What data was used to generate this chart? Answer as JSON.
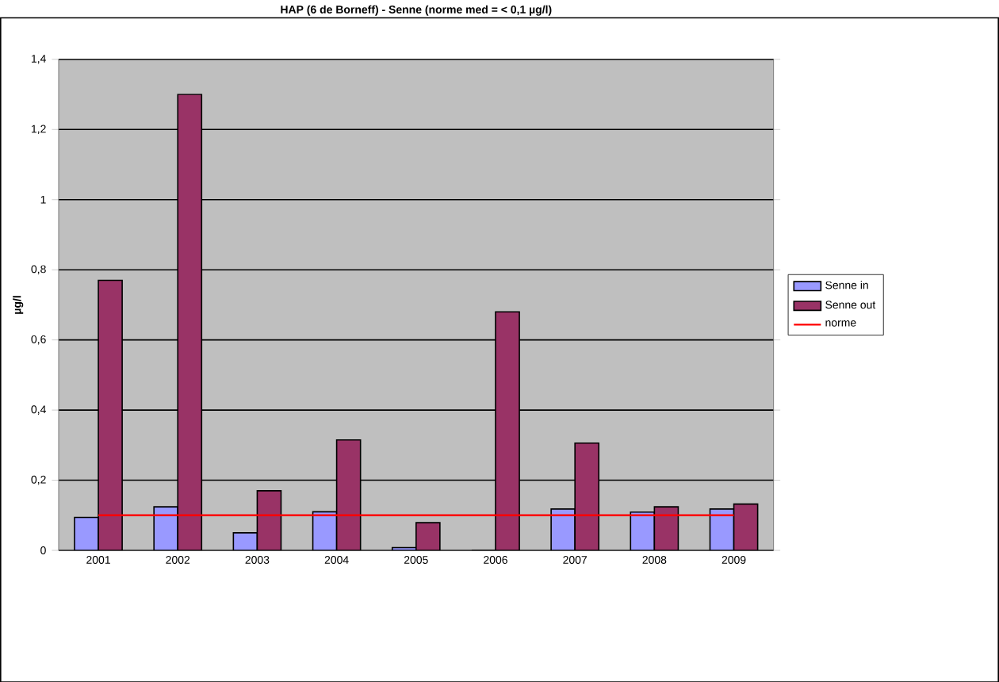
{
  "chart_data": {
    "type": "bar",
    "title": "HAP (6 de Borneff) - Senne (norme med = < 0,1 µg/l)",
    "ylabel": "µg/l",
    "categories": [
      "2001",
      "2002",
      "2003",
      "2004",
      "2005",
      "2006",
      "2007",
      "2008",
      "2009"
    ],
    "series": [
      {
        "name": "Senne in",
        "color": "#9999ff",
        "values": [
          0.094,
          0.124,
          0.05,
          0.11,
          0.008,
          0,
          0.118,
          0.109,
          0.118
        ]
      },
      {
        "name": "Senne out",
        "color": "#993366",
        "values": [
          0.77,
          1.3,
          0.17,
          0.315,
          0.079,
          0.68,
          0.306,
          0.124,
          0.132
        ]
      },
      {
        "name": "norme",
        "type": "line",
        "color": "#ff0000",
        "values": [
          0.1,
          0.1,
          0.1,
          0.1,
          0.1,
          0.1,
          0.1,
          0.1,
          0.1
        ]
      }
    ],
    "ylim": [
      0,
      1.4
    ],
    "yticks": [
      0,
      {
        "value": 0.2,
        "label": "0,2"
      },
      {
        "value": 0.4,
        "label": "0,4"
      },
      {
        "value": 0.6,
        "label": "0,6"
      },
      {
        "value": 0.8,
        "label": "0,8"
      },
      1,
      {
        "value": 1.2,
        "label": "1,2"
      },
      {
        "value": 1.4,
        "label": "1,4"
      }
    ],
    "grid": "y",
    "legend": "right"
  }
}
